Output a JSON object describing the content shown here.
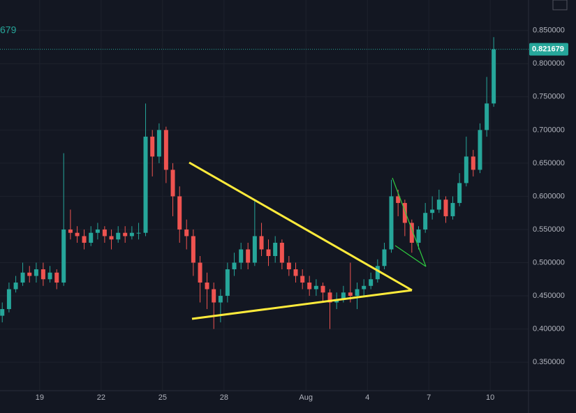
{
  "chart_data": {
    "type": "candlestick",
    "legend_text": "679",
    "last_price": 0.821679,
    "up_color": "#26a69a",
    "down_color": "#ef5350",
    "x": [
      17.17,
      17.5,
      17.83,
      18.17,
      18.5,
      18.83,
      19.17,
      19.5,
      19.83,
      20.17,
      20.5,
      20.83,
      21.17,
      21.5,
      21.83,
      22.17,
      22.5,
      22.83,
      23.17,
      23.5,
      23.83,
      24.17,
      24.5,
      24.83,
      25.17,
      25.5,
      25.83,
      26.17,
      26.5,
      26.83,
      27.17,
      27.5,
      27.83,
      28.17,
      28.5,
      28.83,
      29.17,
      29.5,
      29.83,
      30.17,
      30.5,
      30.83,
      31.17,
      31.5,
      31.83,
      32.17,
      32.5,
      32.83,
      33.17,
      33.5,
      33.83,
      34.17,
      34.5,
      34.83,
      35.17,
      35.5,
      35.83,
      36.17,
      36.5,
      36.83,
      37.17,
      37.5,
      37.83,
      38.17,
      38.5,
      38.83,
      39.17,
      39.5,
      39.83,
      40.17,
      40.5,
      40.83,
      41.17
    ],
    "open": [
      0.42,
      0.43,
      0.46,
      0.47,
      0.485,
      0.48,
      0.49,
      0.475,
      0.485,
      0.47,
      0.55,
      0.545,
      0.54,
      0.53,
      0.545,
      0.55,
      0.54,
      0.535,
      0.545,
      0.54,
      0.545,
      0.545,
      0.69,
      0.66,
      0.7,
      0.64,
      0.6,
      0.55,
      0.54,
      0.5,
      0.47,
      0.46,
      0.44,
      0.45,
      0.49,
      0.5,
      0.52,
      0.5,
      0.54,
      0.52,
      0.51,
      0.53,
      0.5,
      0.49,
      0.48,
      0.47,
      0.46,
      0.465,
      0.455,
      0.44,
      0.445,
      0.455,
      0.45,
      0.46,
      0.465,
      0.475,
      0.495,
      0.52,
      0.6,
      0.59,
      0.56,
      0.53,
      0.55,
      0.575,
      0.58,
      0.595,
      0.57,
      0.59,
      0.62,
      0.66,
      0.64,
      0.7,
      0.74
    ],
    "high": [
      0.44,
      0.47,
      0.48,
      0.5,
      0.495,
      0.5,
      0.5,
      0.495,
      0.49,
      0.665,
      0.58,
      0.555,
      0.55,
      0.555,
      0.56,
      0.555,
      0.55,
      0.555,
      0.555,
      0.555,
      0.56,
      0.74,
      0.7,
      0.71,
      0.705,
      0.65,
      0.615,
      0.565,
      0.55,
      0.51,
      0.485,
      0.47,
      0.46,
      0.5,
      0.515,
      0.53,
      0.53,
      0.595,
      0.56,
      0.535,
      0.54,
      0.535,
      0.51,
      0.5,
      0.49,
      0.48,
      0.475,
      0.47,
      0.46,
      0.455,
      0.465,
      0.5,
      0.47,
      0.475,
      0.485,
      0.505,
      0.53,
      0.625,
      0.61,
      0.595,
      0.565,
      0.555,
      0.59,
      0.6,
      0.61,
      0.6,
      0.6,
      0.635,
      0.69,
      0.67,
      0.71,
      0.78,
      0.84
    ],
    "low": [
      0.41,
      0.425,
      0.455,
      0.465,
      0.47,
      0.47,
      0.465,
      0.47,
      0.46,
      0.465,
      0.535,
      0.53,
      0.52,
      0.525,
      0.535,
      0.53,
      0.52,
      0.53,
      0.53,
      0.535,
      0.535,
      0.54,
      0.63,
      0.65,
      0.62,
      0.57,
      0.53,
      0.52,
      0.48,
      0.44,
      0.43,
      0.4,
      0.41,
      0.44,
      0.48,
      0.49,
      0.49,
      0.495,
      0.51,
      0.495,
      0.5,
      0.49,
      0.48,
      0.47,
      0.46,
      0.45,
      0.45,
      0.44,
      0.4,
      0.43,
      0.44,
      0.44,
      0.43,
      0.45,
      0.46,
      0.47,
      0.49,
      0.515,
      0.57,
      0.54,
      0.515,
      0.52,
      0.545,
      0.565,
      0.575,
      0.56,
      0.565,
      0.585,
      0.615,
      0.63,
      0.635,
      0.69,
      0.735
    ],
    "close": [
      0.43,
      0.46,
      0.47,
      0.485,
      0.48,
      0.49,
      0.475,
      0.485,
      0.47,
      0.55,
      0.545,
      0.54,
      0.53,
      0.545,
      0.55,
      0.54,
      0.535,
      0.545,
      0.54,
      0.545,
      0.545,
      0.69,
      0.66,
      0.7,
      0.64,
      0.6,
      0.55,
      0.54,
      0.5,
      0.47,
      0.46,
      0.44,
      0.45,
      0.49,
      0.5,
      0.52,
      0.5,
      0.54,
      0.52,
      0.51,
      0.53,
      0.5,
      0.49,
      0.48,
      0.47,
      0.46,
      0.465,
      0.455,
      0.44,
      0.445,
      0.455,
      0.45,
      0.46,
      0.465,
      0.475,
      0.495,
      0.52,
      0.6,
      0.59,
      0.56,
      0.53,
      0.55,
      0.575,
      0.58,
      0.595,
      0.57,
      0.59,
      0.62,
      0.66,
      0.64,
      0.7,
      0.74,
      0.821679
    ],
    "xlim": [
      17.06,
      42.87
    ],
    "ylim": [
      0.307,
      0.896
    ],
    "xticks": [
      19,
      22,
      25,
      28,
      {
        "value": 32,
        "label": "Aug"
      },
      {
        "value": 35,
        "label": "4"
      },
      {
        "value": 38,
        "label": "7"
      },
      {
        "value": 41,
        "label": "10"
      }
    ],
    "yticks": [
      {
        "value": 0.35,
        "label": "0.350000"
      },
      {
        "value": 0.4,
        "label": "0.400000"
      },
      {
        "value": 0.45,
        "label": "0.450000"
      },
      {
        "value": 0.5,
        "label": "0.500000"
      },
      {
        "value": 0.55,
        "label": "0.550000"
      },
      {
        "value": 0.6,
        "label": "0.600000"
      },
      {
        "value": 0.65,
        "label": "0.650000"
      },
      {
        "value": 0.7,
        "label": "0.700000"
      },
      {
        "value": 0.75,
        "label": "0.750000"
      },
      {
        "value": 0.8,
        "label": "0.800000"
      },
      {
        "value": 0.85,
        "label": "0.850000"
      }
    ],
    "grid": true
  }
}
